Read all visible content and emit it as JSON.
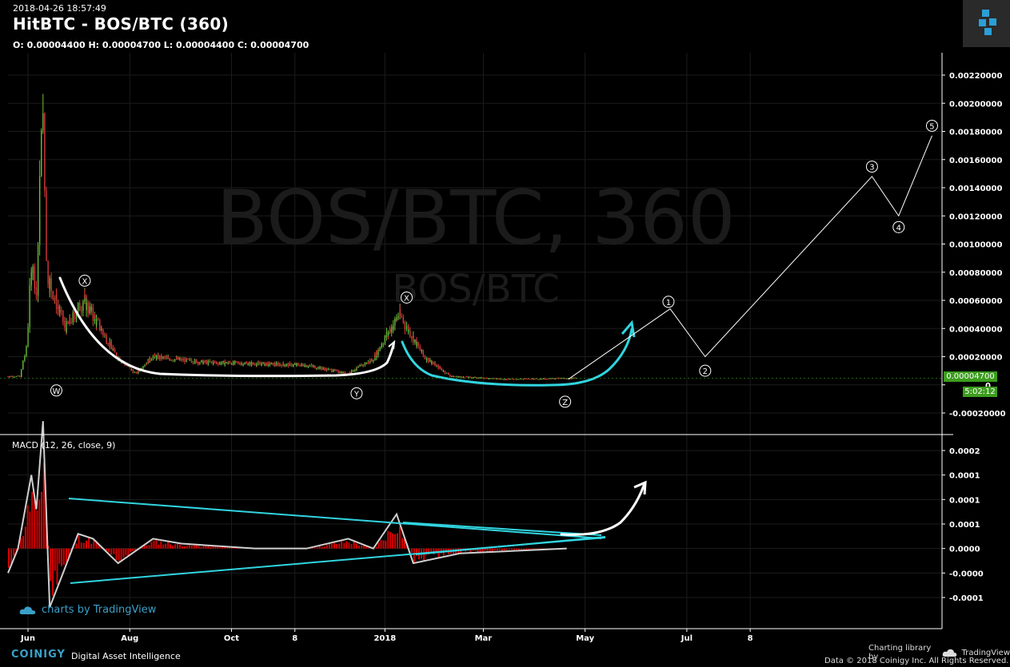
{
  "header": {
    "timestamp": "2018-04-26 18:57:49",
    "title": "HitBTC - BOS/BTC (360)",
    "ohlc": "O: 0.00004400 H: 0.00004700 L: 0.00004400 C: 0.00004700"
  },
  "watermark": {
    "main": "BOS/BTC, 360",
    "sub": "BOS/BTC"
  },
  "price_tag": "0.00004700",
  "time_tag": "5:02:12",
  "macd_label": "MACD (12, 26, close, 9)",
  "tv_watermark": "charts by TradingView",
  "footer": {
    "brand": "COINIGY",
    "tagline": "Digital Asset Intelligence",
    "charting": "Charting library by",
    "tradingview": "TradingView",
    "data": "Data © 2018 Coinigy Inc. All Rights Reserved."
  },
  "colors": {
    "background": "#000000",
    "cyan": "#31d5e0",
    "green": "#3c9d1e",
    "red": "#d40000",
    "bull": "#6fbf3f",
    "bear": "#e23b3b"
  },
  "chart_data": [
    {
      "type": "candlestick",
      "title": "HitBTC - BOS/BTC (360)",
      "ylim": [
        -0.0003,
        0.00235
      ],
      "y_ticks": [
        0.0022,
        0.002,
        0.0018,
        0.0016,
        0.0014,
        0.0012,
        0.001,
        0.0008,
        0.0006,
        0.0004,
        0.0002,
        0,
        -0.0002
      ],
      "y_tick_labels": [
        "0.00220000",
        "0.00200000",
        "0.00180000",
        "0.00160000",
        "0.00140000",
        "0.00120000",
        "0.00100000",
        "0.00080000",
        "0.00060000",
        "0.00040000",
        "0.00020000",
        "0",
        "-0.00020000"
      ],
      "x_tick_labels": [
        "Jun",
        "Aug",
        "Oct",
        "8",
        "2018",
        "Mar",
        "May",
        "Jul",
        "8"
      ],
      "price_path": [
        [
          "2017-05-20",
          6e-05
        ],
        [
          "2017-05-28",
          6e-05
        ],
        [
          "2017-06-01",
          0.0003
        ],
        [
          "2017-06-04",
          0.0009
        ],
        [
          "2017-06-07",
          0.0006
        ],
        [
          "2017-06-10",
          0.002
        ],
        [
          "2017-06-13",
          0.0008
        ],
        [
          "2017-06-18",
          0.0006
        ],
        [
          "2017-06-24",
          0.0004
        ],
        [
          "2017-07-05",
          0.0006
        ],
        [
          "2017-07-15",
          0.0004
        ],
        [
          "2017-07-25",
          0.0002
        ],
        [
          "2017-08-05",
          8e-05
        ],
        [
          "2017-08-15",
          0.0002
        ],
        [
          "2017-09-15",
          0.00016
        ],
        [
          "2017-10-15",
          0.00015
        ],
        [
          "2017-11-15",
          0.00014
        ],
        [
          "2017-12-10",
          8e-05
        ],
        [
          "2017-12-25",
          0.00018
        ],
        [
          "2018-01-10",
          0.0005
        ],
        [
          "2018-01-25",
          0.0002
        ],
        [
          "2018-02-10",
          6e-05
        ],
        [
          "2018-03-15",
          4e-05
        ],
        [
          "2018-04-26",
          4.7e-05
        ]
      ],
      "last_price": 4.7e-05,
      "wave_labels": [
        {
          "label": "W",
          "x": "2017-06-18",
          "y": -4e-05
        },
        {
          "label": "X",
          "x": "2017-07-05",
          "y": 0.00074
        },
        {
          "label": "Y",
          "x": "2017-12-15",
          "y": -6e-05
        },
        {
          "label": "X",
          "x": "2018-01-14",
          "y": 0.00062
        },
        {
          "label": "Z",
          "x": "2018-04-19",
          "y": -0.00012
        },
        {
          "label": "1",
          "x": "2018-06-20",
          "y": 0.00059
        },
        {
          "label": "2",
          "x": "2018-07-12",
          "y": 0.0001
        },
        {
          "label": "3",
          "x": "2018-10-20",
          "y": 0.00155
        },
        {
          "label": "4",
          "x": "2018-11-05",
          "y": 0.00112
        },
        {
          "label": "5",
          "x": "2018-11-25",
          "y": 0.00184
        }
      ],
      "projection_path": [
        [
          "2018-04-21",
          4e-05
        ],
        [
          "2018-06-21",
          0.00054
        ],
        [
          "2018-07-12",
          0.0002
        ],
        [
          "2018-10-20",
          0.00148
        ],
        [
          "2018-11-05",
          0.0012
        ],
        [
          "2018-11-25",
          0.00177
        ]
      ]
    },
    {
      "type": "line",
      "title": "MACD (12, 26, close, 9)",
      "ylim": [
        -0.00014,
        0.00026
      ],
      "y_ticks": [
        0.0002,
        0.00015,
        0.0001,
        5e-05,
        0,
        -5e-05,
        -0.0001
      ],
      "y_tick_labels": [
        "0.0002",
        "0.0001",
        "0.0001",
        "0.0001",
        "0.0000",
        "-0.0000",
        "-0.0001"
      ],
      "series": [
        {
          "values": [
            [
              "2017-05-20",
              -5e-05
            ],
            [
              "2017-05-26",
              0.0
            ],
            [
              "2017-06-03",
              0.00015
            ],
            [
              "2017-06-06",
              8e-05
            ],
            [
              "2017-06-10",
              0.00026
            ],
            [
              "2017-06-14",
              -0.00012
            ],
            [
              "2017-06-22",
              -5e-05
            ],
            [
              "2017-07-01",
              3e-05
            ],
            [
              "2017-07-10",
              2e-05
            ],
            [
              "2017-07-25",
              -3e-05
            ],
            [
              "2017-08-15",
              2e-05
            ],
            [
              "2017-09-01",
              1e-05
            ],
            [
              "2017-10-15",
              0.0
            ],
            [
              "2017-11-15",
              0.0
            ],
            [
              "2017-12-10",
              2e-05
            ],
            [
              "2017-12-25",
              0.0
            ],
            [
              "2018-01-08",
              7e-05
            ],
            [
              "2018-01-18",
              -3e-05
            ],
            [
              "2018-02-15",
              -1e-05
            ],
            [
              "2018-04-20",
              0.0
            ]
          ]
        }
      ]
    }
  ]
}
